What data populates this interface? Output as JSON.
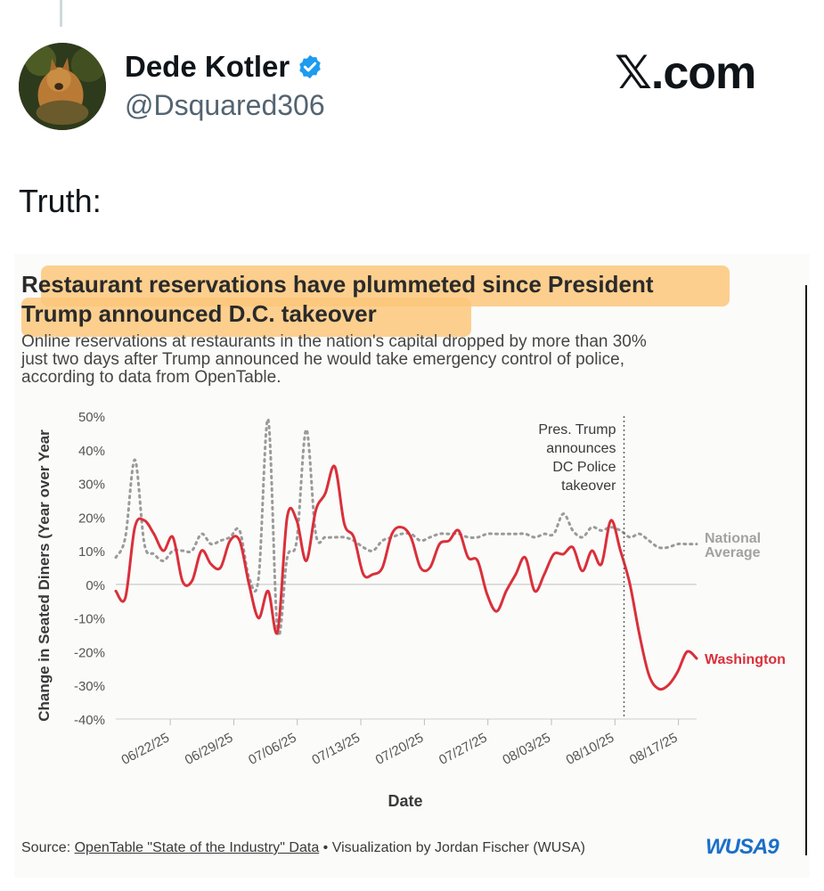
{
  "post": {
    "author_name": "Dede Kotler",
    "handle": "@Dsquared306",
    "brand": "𝕏.com",
    "text": "Truth:"
  },
  "colors": {
    "washington": "#d9303a",
    "national": "#9a9a9a",
    "highlight": "#fbc77a",
    "verified": "#1d9bf0"
  },
  "chart_data": {
    "type": "line",
    "title_line1": "Restaurant reservations have plummeted since President",
    "title_line2": "Trump announced D.C. takeover",
    "subtitle_line1": "Online reservations at restaurants in the nation's capital dropped by more than 30%",
    "subtitle_line2": "just two days after Trump announced he would take emergency control of police,",
    "subtitle_line3": "according to data from OpenTable.",
    "ylabel": "Change in Seated Diners (Year over Year",
    "xlabel": "Date",
    "ylim": [
      -40,
      50
    ],
    "yticks": [
      "50%",
      "40%",
      "30%",
      "20%",
      "10%",
      "0%",
      "-10%",
      "-20%",
      "-30%",
      "-40%"
    ],
    "ytick_values": [
      50,
      40,
      30,
      20,
      10,
      0,
      -10,
      -20,
      -30,
      -40
    ],
    "xticks": [
      "06/22/25",
      "06/29/25",
      "07/06/25",
      "07/13/25",
      "07/20/25",
      "07/27/25",
      "08/03/25",
      "08/10/25",
      "08/17/25"
    ],
    "x_start": "06/16/25",
    "x_end": "08/19/25",
    "annotation_lines": [
      "Pres. Trump",
      "announces",
      "DC Police",
      "takeover"
    ],
    "annotation_date": "08/11/25",
    "series": [
      {
        "name": "Washington",
        "style": "solid",
        "values": [
          -2,
          -4,
          17,
          19,
          15,
          10,
          14,
          1,
          1,
          10,
          6,
          5,
          13,
          13,
          0,
          -10,
          -2,
          -14,
          20,
          19,
          7,
          22,
          27,
          35,
          18,
          14,
          3,
          3,
          5,
          15,
          17,
          14,
          5,
          5,
          12,
          13,
          16,
          8,
          7,
          -3,
          -8,
          -2,
          3,
          8,
          -2,
          3,
          9,
          9,
          11,
          4,
          10,
          6,
          19,
          10,
          0,
          -15,
          -27,
          -31,
          -30,
          -26,
          -20,
          -22
        ]
      },
      {
        "name": "National Average",
        "style": "dotted",
        "values": [
          8,
          14,
          37,
          12,
          9,
          7,
          10,
          10,
          10,
          15,
          12,
          13,
          14,
          16,
          2,
          2,
          49,
          -14,
          8,
          13,
          46,
          15,
          14,
          14,
          14,
          13,
          11,
          10,
          13,
          14,
          15,
          15,
          13,
          14,
          15,
          15,
          15,
          14,
          14,
          15,
          15,
          15,
          15,
          15,
          14,
          15,
          15,
          21,
          16,
          14,
          17,
          16,
          17,
          16,
          14,
          15,
          13,
          11,
          11,
          12,
          12,
          12
        ]
      }
    ],
    "grid": "zero line only"
  },
  "source": {
    "prefix": "Source: ",
    "link": "OpenTable \"State of the Industry\" Data",
    "suffix": " • Visualization by Jordan Fischer (WUSA)",
    "logo": "WUSA9"
  }
}
